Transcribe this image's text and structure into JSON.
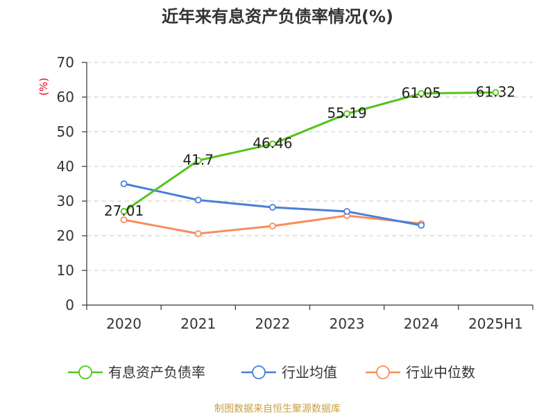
{
  "chart_data": {
    "type": "line",
    "title": "近年来有息资产负债率情况(%)",
    "y_unit_label": "(%)",
    "categories": [
      "2020",
      "2021",
      "2022",
      "2023",
      "2024",
      "2025H1"
    ],
    "ylim": [
      0,
      70
    ],
    "y_ticks": [
      0,
      10,
      20,
      30,
      40,
      50,
      60,
      70
    ],
    "grid": true,
    "legend_position": "bottom",
    "series": [
      {
        "name": "有息资产负债率",
        "color": "#52c41a",
        "values": [
          27.01,
          41.7,
          46.46,
          55.19,
          61.05,
          61.32
        ],
        "data_labels": [
          "27.01",
          "41.7",
          "46.46",
          "55.19",
          "61.05",
          "61.32"
        ]
      },
      {
        "name": "行业均值",
        "color": "#4a7fd8",
        "values": [
          35.0,
          30.3,
          28.2,
          27.0,
          23.0,
          null
        ]
      },
      {
        "name": "行业中位数",
        "color": "#f88c5c",
        "values": [
          24.6,
          20.6,
          22.8,
          25.8,
          23.5,
          null
        ]
      }
    ]
  },
  "footer": {
    "source_text": "制图数据来自恒生聚源数据库",
    "source_color": "#c8a040"
  }
}
